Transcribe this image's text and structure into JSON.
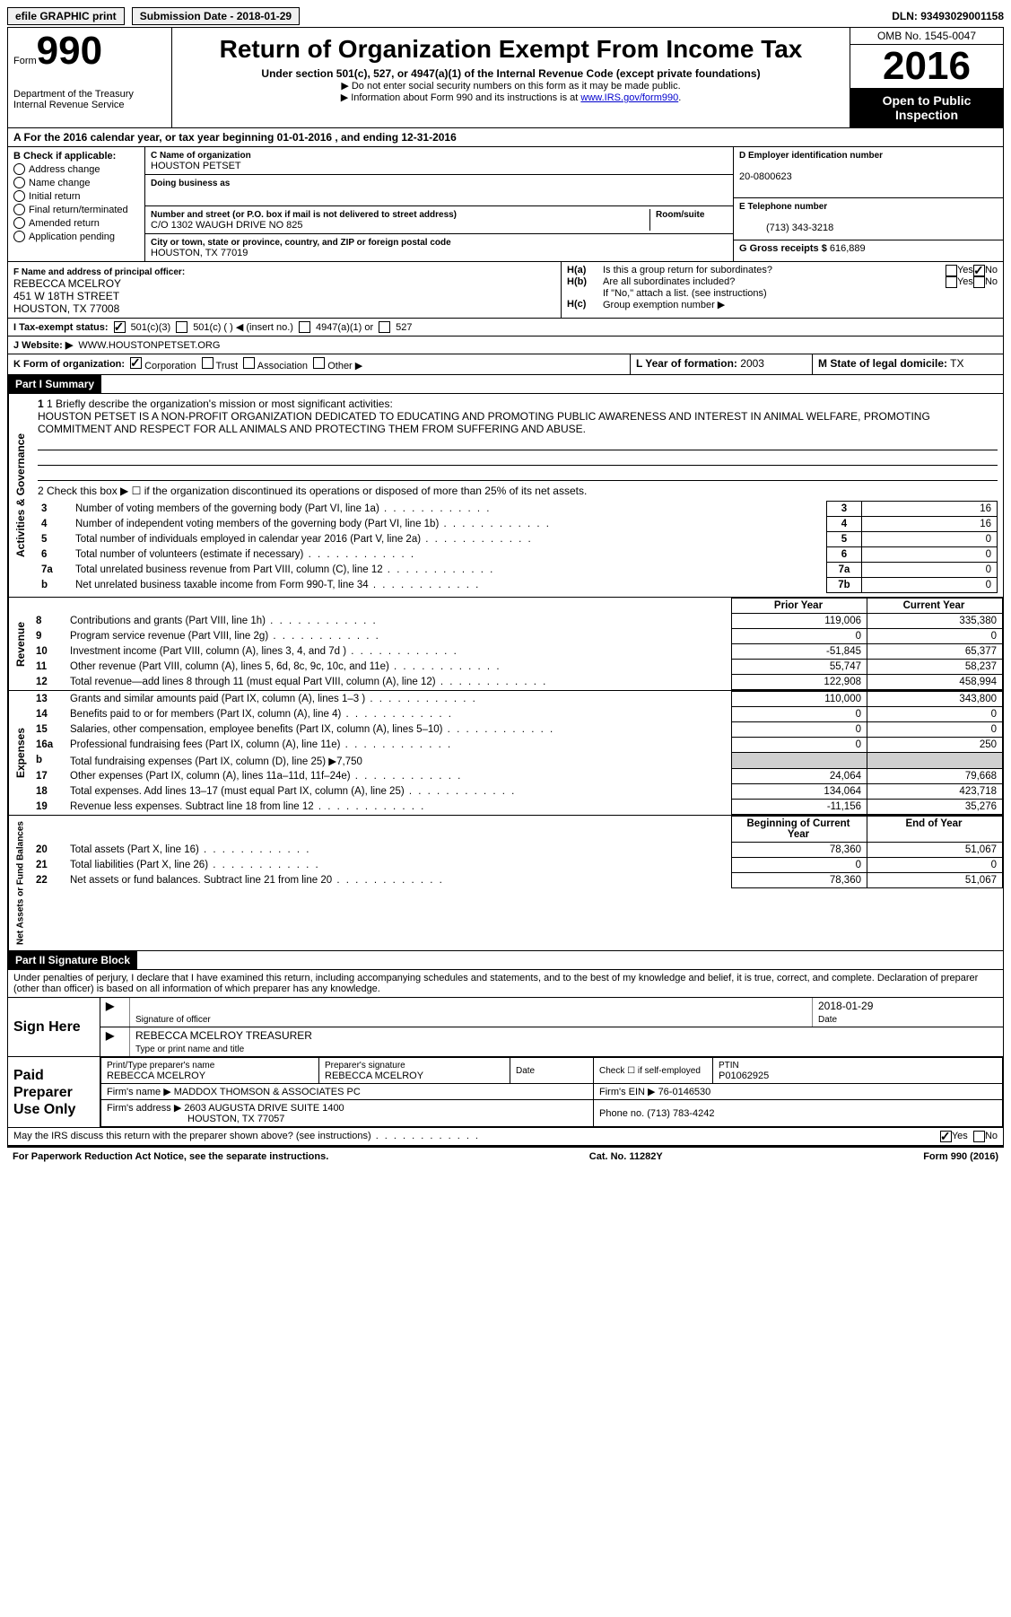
{
  "top": {
    "efile": "efile GRAPHIC print",
    "submission_label": "Submission Date - ",
    "submission_date": "2018-01-29",
    "dln_label": "DLN:",
    "dln": "93493029001158"
  },
  "header": {
    "form_small": "Form",
    "form_num": "990",
    "dept1": "Department of the Treasury",
    "dept2": "Internal Revenue Service",
    "title": "Return of Organization Exempt From Income Tax",
    "subtitle": "Under section 501(c), 527, or 4947(a)(1) of the Internal Revenue Code (except private foundations)",
    "note1": "▶ Do not enter social security numbers on this form as it may be made public.",
    "note2": "▶ Information about Form 990 and its instructions is at ",
    "note2_link": "www.IRS.gov/form990",
    "omb": "OMB No. 1545-0047",
    "year": "2016",
    "open": "Open to Public Inspection"
  },
  "a_row": "A  For the 2016 calendar year, or tax year beginning 01-01-2016  , and ending 12-31-2016",
  "b": {
    "label": "B Check if applicable:",
    "items": [
      "Address change",
      "Name change",
      "Initial return",
      "Final return/terminated",
      "Amended return",
      "Application pending"
    ]
  },
  "c": {
    "name_label": "C Name of organization",
    "name": "HOUSTON PETSET",
    "dba_label": "Doing business as",
    "dba": "",
    "addr_label": "Number and street (or P.O. box if mail is not delivered to street address)",
    "addr": "C/O 1302 WAUGH DRIVE NO 825",
    "room_label": "Room/suite",
    "city_label": "City or town, state or province, country, and ZIP or foreign postal code",
    "city": "HOUSTON, TX  77019"
  },
  "d": {
    "label": "D Employer identification number",
    "value": "20-0800623"
  },
  "e": {
    "label": "E Telephone number",
    "value": "(713) 343-3218"
  },
  "g": {
    "label": "G Gross receipts $",
    "value": "616,889"
  },
  "f": {
    "label": "F Name and address of principal officer:",
    "line1": "REBECCA MCELROY",
    "line2": "451 W 18TH STREET",
    "line3": "HOUSTON, TX 77008"
  },
  "h": {
    "a": "Is this a group return for subordinates?",
    "b": "Are all subordinates included?",
    "b_note": "If \"No,\" attach a list. (see instructions)",
    "c": "Group exemption number ▶",
    "yes": "Yes",
    "no": "No"
  },
  "i": {
    "label": "I  Tax-exempt status:",
    "opt1": "501(c)(3)",
    "opt2": "501(c) (  ) ◀ (insert no.)",
    "opt3": "4947(a)(1) or",
    "opt4": "527"
  },
  "j": {
    "label": "J  Website: ▶",
    "value": "WWW.HOUSTONPETSET.ORG"
  },
  "k": {
    "label": "K Form of organization:",
    "opts": [
      "Corporation",
      "Trust",
      "Association",
      "Other ▶"
    ]
  },
  "l": {
    "label": "L Year of formation:",
    "value": "2003"
  },
  "m": {
    "label": "M State of legal domicile:",
    "value": "TX"
  },
  "part1": {
    "header": "Part I    Summary",
    "mission_label": "1 Briefly describe the organization's mission or most significant activities:",
    "mission": "HOUSTON PETSET IS A NON-PROFIT ORGANIZATION DEDICATED TO EDUCATING AND PROMOTING PUBLIC AWARENESS AND INTEREST IN ANIMAL WELFARE, PROMOTING COMMITMENT AND RESPECT FOR ALL ANIMALS AND PROTECTING THEM FROM SUFFERING AND ABUSE.",
    "line2": "2  Check this box ▶ ☐  if the organization discontinued its operations or disposed of more than 25% of its net assets.",
    "gov_rows": [
      {
        "n": "3",
        "t": "Number of voting members of the governing body (Part VI, line 1a)",
        "c": "3",
        "v": "16"
      },
      {
        "n": "4",
        "t": "Number of independent voting members of the governing body (Part VI, line 1b)",
        "c": "4",
        "v": "16"
      },
      {
        "n": "5",
        "t": "Total number of individuals employed in calendar year 2016 (Part V, line 2a)",
        "c": "5",
        "v": "0"
      },
      {
        "n": "6",
        "t": "Total number of volunteers (estimate if necessary)",
        "c": "6",
        "v": "0"
      },
      {
        "n": "7a",
        "t": "Total unrelated business revenue from Part VIII, column (C), line 12",
        "c": "7a",
        "v": "0"
      },
      {
        "n": "b",
        "t": "Net unrelated business taxable income from Form 990-T, line 34",
        "c": "7b",
        "v": "0"
      }
    ],
    "prior_year": "Prior Year",
    "current_year": "Current Year",
    "rev_rows": [
      {
        "n": "8",
        "t": "Contributions and grants (Part VIII, line 1h)",
        "p": "119,006",
        "c": "335,380"
      },
      {
        "n": "9",
        "t": "Program service revenue (Part VIII, line 2g)",
        "p": "0",
        "c": "0"
      },
      {
        "n": "10",
        "t": "Investment income (Part VIII, column (A), lines 3, 4, and 7d )",
        "p": "-51,845",
        "c": "65,377"
      },
      {
        "n": "11",
        "t": "Other revenue (Part VIII, column (A), lines 5, 6d, 8c, 9c, 10c, and 11e)",
        "p": "55,747",
        "c": "58,237"
      },
      {
        "n": "12",
        "t": "Total revenue—add lines 8 through 11 (must equal Part VIII, column (A), line 12)",
        "p": "122,908",
        "c": "458,994"
      }
    ],
    "exp_rows": [
      {
        "n": "13",
        "t": "Grants and similar amounts paid (Part IX, column (A), lines 1–3 )",
        "p": "110,000",
        "c": "343,800"
      },
      {
        "n": "14",
        "t": "Benefits paid to or for members (Part IX, column (A), line 4)",
        "p": "0",
        "c": "0"
      },
      {
        "n": "15",
        "t": "Salaries, other compensation, employee benefits (Part IX, column (A), lines 5–10)",
        "p": "0",
        "c": "0"
      },
      {
        "n": "16a",
        "t": "Professional fundraising fees (Part IX, column (A), line 11e)",
        "p": "0",
        "c": "250"
      },
      {
        "n": "b",
        "t": "Total fundraising expenses (Part IX, column (D), line 25) ▶7,750",
        "p": "",
        "c": "",
        "shade": true
      },
      {
        "n": "17",
        "t": "Other expenses (Part IX, column (A), lines 11a–11d, 11f–24e)",
        "p": "24,064",
        "c": "79,668"
      },
      {
        "n": "18",
        "t": "Total expenses. Add lines 13–17 (must equal Part IX, column (A), line 25)",
        "p": "134,064",
        "c": "423,718"
      },
      {
        "n": "19",
        "t": "Revenue less expenses. Subtract line 18 from line 12",
        "p": "-11,156",
        "c": "35,276"
      }
    ],
    "begin_year": "Beginning of Current Year",
    "end_year": "End of Year",
    "net_rows": [
      {
        "n": "20",
        "t": "Total assets (Part X, line 16)",
        "p": "78,360",
        "c": "51,067"
      },
      {
        "n": "21",
        "t": "Total liabilities (Part X, line 26)",
        "p": "0",
        "c": "0"
      },
      {
        "n": "22",
        "t": "Net assets or fund balances. Subtract line 21 from line 20",
        "p": "78,360",
        "c": "51,067"
      }
    ],
    "vert_gov": "Activities & Governance",
    "vert_rev": "Revenue",
    "vert_exp": "Expenses",
    "vert_net": "Net Assets or Fund Balances"
  },
  "part2": {
    "header": "Part II    Signature Block",
    "perjury": "Under penalties of perjury, I declare that I have examined this return, including accompanying schedules and statements, and to the best of my knowledge and belief, it is true, correct, and complete. Declaration of preparer (other than officer) is based on all information of which preparer has any knowledge.",
    "sign_here": "Sign Here",
    "sig_officer": "Signature of officer",
    "sig_date": "2018-01-29",
    "date_label": "Date",
    "officer_name": "REBECCA MCELROY TREASURER",
    "type_name": "Type or print name and title",
    "paid_prep": "Paid Preparer Use Only",
    "prep_name_label": "Print/Type preparer's name",
    "prep_name": "REBECCA MCELROY",
    "prep_sig_label": "Preparer's signature",
    "prep_sig": "REBECCA MCELROY",
    "prep_date_label": "Date",
    "check_if": "Check ☐ if self-employed",
    "ptin_label": "PTIN",
    "ptin": "P01062925",
    "firm_name_label": "Firm's name   ▶",
    "firm_name": "MADDOX THOMSON & ASSOCIATES PC",
    "firm_ein_label": "Firm's EIN ▶",
    "firm_ein": "76-0146530",
    "firm_addr_label": "Firm's address ▶",
    "firm_addr": "2603 AUGUSTA DRIVE SUITE 1400",
    "firm_addr2": "HOUSTON, TX  77057",
    "phone_label": "Phone no.",
    "phone": "(713) 783-4242",
    "discuss": "May the IRS discuss this return with the preparer shown above? (see instructions)",
    "yes": "Yes",
    "no": "No"
  },
  "footer": {
    "left": "For Paperwork Reduction Act Notice, see the separate instructions.",
    "center": "Cat. No. 11282Y",
    "right": "Form 990 (2016)"
  }
}
